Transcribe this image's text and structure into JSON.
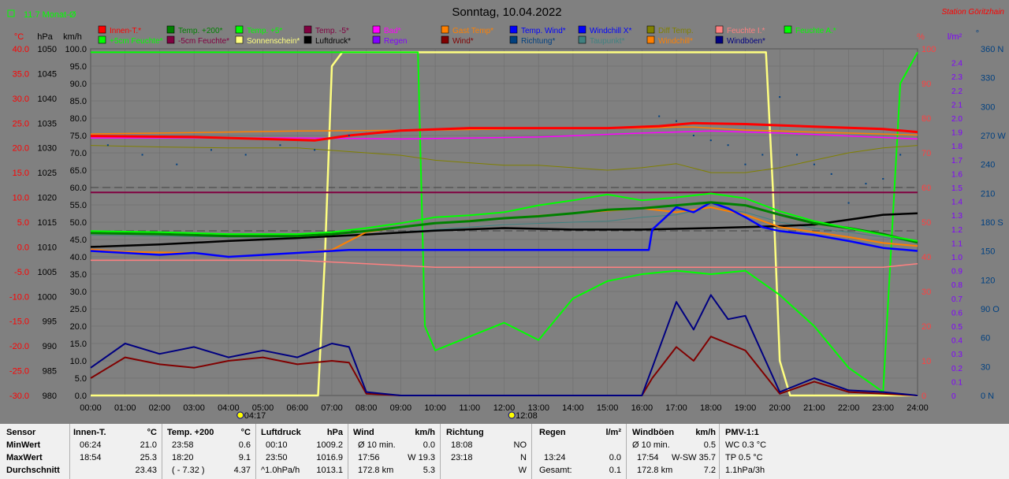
{
  "header": {
    "title": "Sonntag, 10.04.2022",
    "station": "Station Göritzhain",
    "monthly_avg": "11.7 Monat-Ø"
  },
  "legend_row1": [
    {
      "label": "Innen-T.*",
      "color": "#ff0000"
    },
    {
      "label": "Temp. +200*",
      "color": "#008000"
    },
    {
      "label": "Temp. +5*",
      "color": "#00ff00"
    },
    {
      "label": "Temp. -5*",
      "color": "#800040"
    },
    {
      "label": "Bad*",
      "color": "#ff00ff"
    },
    {
      "label": "Gast Temp*",
      "color": "#ff8000"
    },
    {
      "label": "Temp. Wind*",
      "color": "#0000ff"
    },
    {
      "label": "Windchill X*",
      "color": "#0000ff"
    },
    {
      "label": "Diff Temp.",
      "color": "#808000"
    },
    {
      "label": "Feuchte I.*",
      "color": "#ff8080"
    },
    {
      "label": "Feuchte A.*",
      "color": "#00ff00"
    }
  ],
  "legend_row2": [
    {
      "label": "+5cm Feuchte*",
      "color": "#00ff00"
    },
    {
      "label": "-5cm Feuchte*",
      "color": "#800040"
    },
    {
      "label": "Sonnenschein*",
      "color": "#ffff80"
    },
    {
      "label": "Luftdruck*",
      "color": "#000000"
    },
    {
      "label": "Regen",
      "color": "#8000ff"
    },
    {
      "label": "Wind*",
      "color": "#800000"
    },
    {
      "label": "Richtung*",
      "color": "#004080"
    },
    {
      "label": "Taupunkt*",
      "color": "#408080"
    },
    {
      "label": "Windchill*",
      "color": "#ff8000"
    },
    {
      "label": "Windböen*",
      "color": "#000080"
    }
  ],
  "units": {
    "temp": "°C",
    "pressure": "hPa",
    "wind": "km/h",
    "humidity": "%",
    "rain": "l/m²",
    "direction": "°"
  },
  "axes": {
    "temp_ticks": [
      "40.0",
      "35.0",
      "30.0",
      "25.0",
      "20.0",
      "15.0",
      "10.0",
      "5.0",
      "0.0",
      "-5.0",
      "-10.0",
      "-15.0",
      "-20.0",
      "-25.0",
      "-30.0"
    ],
    "pressure_ticks": [
      "1050",
      "1045",
      "1040",
      "1035",
      "1030",
      "1025",
      "1020",
      "1015",
      "1010",
      "1005",
      "1000",
      "995",
      "990",
      "985",
      "980"
    ],
    "wind_ticks": [
      "100.0",
      "95.0",
      "90.0",
      "85.0",
      "80.0",
      "75.0",
      "70.0",
      "65.0",
      "60.0",
      "55.0",
      "50.0",
      "45.0",
      "40.0",
      "35.0",
      "30.0",
      "25.0",
      "20.0",
      "15.0",
      "10.0",
      "5.0",
      "0.0"
    ],
    "humidity_ticks": [
      "100",
      "90",
      "80",
      "70",
      "60",
      "50",
      "40",
      "30",
      "20",
      "10",
      "0"
    ],
    "rain_ticks": [
      "2.4",
      "2.3",
      "2.2",
      "2.1",
      "2.0",
      "1.9",
      "1.8",
      "1.7",
      "1.6",
      "1.5",
      "1.4",
      "1.3",
      "1.2",
      "1.1",
      "1.0",
      "0.9",
      "0.8",
      "0.7",
      "0.6",
      "0.5",
      "0.4",
      "0.3",
      "0.2",
      "0.1",
      "0"
    ],
    "direction_ticks": [
      "360 N",
      "330",
      "300",
      "270 W",
      "240",
      "210",
      "180 S",
      "150",
      "120",
      "90 O",
      "60",
      "30",
      "0 N"
    ],
    "time_ticks": [
      "00:00",
      "01:00",
      "02:00",
      "03:00",
      "04:00",
      "05:00",
      "06:00",
      "07:00",
      "08:00",
      "09:00",
      "10:00",
      "11:00",
      "12:00",
      "13:00",
      "14:00",
      "15:00",
      "16:00",
      "17:00",
      "18:00",
      "19:00",
      "20:00",
      "21:00",
      "22:00",
      "23:00",
      "24:00"
    ],
    "sunrise": "04:17",
    "noon": "12:08"
  },
  "chart_data": {
    "type": "line",
    "x_unit": "hour of day",
    "xlim": [
      0,
      24
    ],
    "ylim_wind": [
      0,
      100
    ],
    "series": [
      {
        "name": "Innen-T.*",
        "axis": "temp",
        "color": "#ff0000",
        "x": [
          0,
          3,
          5,
          6.5,
          7.5,
          9,
          11,
          13,
          15,
          16.5,
          17.5,
          19,
          21,
          23,
          24
        ],
        "y": [
          22.4,
          22.2,
          21.8,
          21.5,
          22.5,
          23.5,
          24.0,
          24.0,
          24.0,
          24.4,
          25.0,
          24.8,
          24.3,
          23.8,
          23.2
        ]
      },
      {
        "name": "Temp. +200*",
        "axis": "temp",
        "color": "#008000",
        "x": [
          0,
          2,
          4,
          6,
          7,
          8,
          9,
          10,
          11,
          12,
          13,
          14,
          15,
          16,
          17,
          18,
          19,
          20,
          21,
          22,
          23,
          24
        ],
        "y": [
          2.8,
          2.6,
          2.2,
          2.2,
          2.6,
          3.2,
          4.0,
          4.8,
          5.2,
          5.8,
          6.2,
          6.8,
          7.5,
          7.8,
          8.4,
          9.0,
          8.4,
          6.5,
          4.8,
          3.8,
          2.6,
          0.9
        ]
      },
      {
        "name": "Temp. +5*",
        "axis": "temp",
        "color": "#00ff00",
        "x": [
          0,
          2,
          4,
          6,
          7,
          8,
          9,
          10,
          11,
          12,
          13,
          14,
          15,
          16,
          17,
          18,
          19,
          20,
          21,
          22,
          23,
          24
        ],
        "y": [
          3.2,
          3.0,
          2.6,
          2.6,
          3.0,
          3.8,
          4.8,
          6.0,
          6.4,
          7.0,
          8.4,
          9.4,
          10.6,
          9.4,
          10.0,
          10.8,
          9.8,
          7.2,
          5.2,
          3.8,
          2.4,
          1.2
        ]
      },
      {
        "name": "Temp. -5*",
        "axis": "temp",
        "color": "#800040",
        "x": [
          0,
          24
        ],
        "y": [
          11.0,
          11.0
        ]
      },
      {
        "name": "Bad*",
        "axis": "temp",
        "color": "#ff00ff",
        "x": [
          0,
          6,
          9,
          13,
          16,
          18,
          20,
          24
        ],
        "y": [
          22.0,
          22.0,
          21.8,
          22.2,
          23.0,
          23.4,
          23.0,
          21.8
        ]
      },
      {
        "name": "Gast Temp*",
        "axis": "temp",
        "color": "#ff8000",
        "x": [
          0,
          2,
          4,
          6,
          8,
          10,
          12,
          14,
          16,
          17,
          17.5,
          18,
          19,
          20,
          22,
          24
        ],
        "y": [
          22.8,
          23.0,
          23.2,
          23.4,
          23.5,
          23.6,
          23.8,
          24.0,
          24.0,
          24.2,
          24.2,
          24.0,
          23.6,
          23.4,
          23.0,
          22.6
        ]
      },
      {
        "name": "Temp. Wind*",
        "axis": "temp",
        "color": "#0000ff",
        "x": [
          0,
          1,
          2,
          3,
          4,
          5,
          6,
          7,
          7.5,
          8,
          16.2,
          16.3,
          17,
          17.5,
          18,
          18.5,
          19,
          19.5,
          20,
          21,
          22,
          23,
          24
        ],
        "y": [
          -0.8,
          -1.2,
          -1.6,
          -1.2,
          -2.0,
          -1.6,
          -1.2,
          -0.8,
          -0.6,
          -0.6,
          -0.6,
          3.5,
          8.0,
          7.0,
          9.0,
          7.8,
          6.0,
          4.0,
          3.2,
          2.4,
          1.2,
          -0.2,
          -0.8
        ]
      },
      {
        "name": "Diff Temp.",
        "axis": "temp",
        "color": "#808000",
        "x": [
          0,
          2,
          4,
          6,
          8,
          9,
          10,
          11,
          12,
          13,
          14,
          15,
          16,
          17,
          18,
          19,
          20,
          21,
          22,
          23,
          24
        ],
        "y": [
          20.5,
          20.2,
          20.0,
          20.0,
          19.0,
          18.5,
          17.5,
          17.0,
          16.5,
          16.5,
          16.0,
          15.5,
          16.0,
          16.8,
          15.0,
          15.0,
          16.0,
          17.5,
          19.0,
          20.0,
          20.5
        ]
      },
      {
        "name": "Feuchte A.*",
        "axis": "humidity",
        "color": "#00ff00",
        "x": [
          0,
          6.5,
          7,
          9.5,
          9.7,
          10,
          11,
          12,
          13,
          14,
          15,
          16,
          17,
          18,
          19,
          20,
          21,
          22,
          23,
          23.5,
          24
        ],
        "y": [
          99,
          99,
          99,
          99,
          20,
          13,
          17,
          21,
          16,
          28,
          33,
          35,
          36,
          35,
          36,
          29,
          20,
          8,
          1,
          90,
          99
        ]
      },
      {
        "name": "Sonnenschein*",
        "axis": "humidity",
        "color": "#ffff80",
        "x": [
          0,
          6.6,
          6.8,
          7,
          7.3,
          19.6,
          19.8,
          20,
          20.3,
          24
        ],
        "y": [
          0,
          0,
          40,
          95,
          99,
          99,
          60,
          10,
          0,
          0
        ]
      },
      {
        "name": "Luftdruck*",
        "axis": "pressure",
        "color": "#000000",
        "x": [
          0,
          2,
          4,
          6,
          8,
          10,
          12,
          14,
          16,
          18,
          20,
          21,
          22,
          23,
          24
        ],
        "y": [
          1010.0,
          1010.5,
          1011.2,
          1011.8,
          1012.5,
          1013.3,
          1013.8,
          1013.5,
          1013.5,
          1013.8,
          1014.2,
          1014.5,
          1015.5,
          1016.5,
          1016.8
        ]
      },
      {
        "name": "Feuchte I.*",
        "axis": "humidity",
        "color": "#ff8080",
        "x": [
          0,
          6,
          8,
          10,
          12,
          14,
          16,
          18,
          20,
          22,
          23,
          24
        ],
        "y": [
          39,
          39,
          38,
          37,
          37,
          37,
          37,
          37,
          37,
          37,
          37,
          38
        ]
      },
      {
        "name": "Wind*",
        "axis": "wind",
        "color": "#800000",
        "x": [
          0,
          1,
          2,
          3,
          4,
          5,
          6,
          7,
          7.5,
          8,
          9,
          12,
          16,
          16.3,
          17,
          17.5,
          18,
          19,
          20,
          21,
          22,
          23,
          24
        ],
        "y": [
          5.0,
          11.0,
          9.0,
          8.0,
          10.0,
          11.0,
          9.0,
          10.0,
          9.5,
          0.5,
          0,
          0,
          0,
          5.0,
          14.0,
          10.0,
          17.0,
          13.0,
          0.5,
          4.0,
          1.0,
          0.5,
          0
        ]
      },
      {
        "name": "Windböen*",
        "axis": "wind",
        "color": "#000080",
        "x": [
          0,
          1,
          2,
          3,
          4,
          5,
          6,
          7,
          7.5,
          8,
          9,
          12,
          16,
          16.3,
          17,
          17.5,
          18,
          18.5,
          19,
          20,
          21,
          22,
          23,
          24
        ],
        "y": [
          8.0,
          15.0,
          12.0,
          14.0,
          11.0,
          13.0,
          11.0,
          15.0,
          14.0,
          1.0,
          0,
          0,
          0,
          8.0,
          27.0,
          19.0,
          29.0,
          22.0,
          23.0,
          1.0,
          5.0,
          1.5,
          1.0,
          0
        ]
      },
      {
        "name": "Taupunkt*",
        "axis": "temp",
        "color": "#408080",
        "x": [
          0,
          2,
          4,
          6,
          8,
          10,
          12,
          14,
          15,
          16,
          17,
          18,
          19,
          20,
          21,
          22,
          23,
          24
        ],
        "y": [
          2.4,
          2.2,
          2.0,
          2.0,
          2.5,
          3.5,
          4.5,
          5.0,
          5.2,
          6.0,
          6.5,
          8.0,
          7.0,
          5.0,
          3.8,
          3.0,
          2.0,
          0.8
        ]
      },
      {
        "name": "Windchill*",
        "axis": "temp",
        "color": "#ff8000",
        "x": [
          0,
          1,
          3,
          4,
          5,
          6,
          7,
          8,
          9,
          10,
          12,
          14,
          16,
          17,
          18,
          19,
          20,
          21,
          22,
          23,
          24
        ],
        "y": [
          -0.5,
          -1.0,
          -1.2,
          -2.0,
          -1.6,
          -1.2,
          -0.6,
          3.0,
          4.0,
          4.8,
          5.8,
          6.8,
          7.8,
          7.0,
          8.0,
          6.5,
          4.0,
          3.0,
          2.0,
          0.8,
          0.2
        ]
      },
      {
        "name": "Richtung*",
        "axis": "direction",
        "color": "#004080",
        "x": [
          0.5,
          1.5,
          2.5,
          3.5,
          4.5,
          5.5,
          6.5,
          7.5,
          16.5,
          17,
          17.5,
          18,
          18.5,
          19,
          19.5,
          20,
          20.5,
          21,
          21.5,
          22,
          22.5,
          23,
          23.5
        ],
        "y": [
          260,
          250,
          240,
          255,
          250,
          260,
          255,
          270,
          290,
          285,
          270,
          265,
          260,
          240,
          250,
          310,
          250,
          240,
          230,
          200,
          220,
          225,
          250
        ]
      }
    ]
  },
  "stats": {
    "sensor": {
      "title": "Sensor",
      "rows": [
        "MinWert",
        "MaxWert",
        "Durchschnitt"
      ]
    },
    "innen": {
      "title": "Innen-T.",
      "unit": "°C",
      "rows": [
        [
          "06:24",
          "21.0"
        ],
        [
          "18:54",
          "25.3"
        ],
        [
          "",
          "23.43"
        ]
      ]
    },
    "temp200": {
      "title": "Temp. +200",
      "unit": "°C",
      "rows": [
        [
          "23:58",
          "0.6"
        ],
        [
          "18:20",
          "9.1"
        ],
        [
          "( - 7.32 )",
          "4.37"
        ]
      ]
    },
    "luftdruck": {
      "title": "Luftdruck",
      "unit": "hPa",
      "rows": [
        [
          "00:10",
          "1009.2"
        ],
        [
          "23:50",
          "1016.9"
        ],
        [
          "^1.0hPa/h",
          "1013.1"
        ]
      ]
    },
    "wind": {
      "title": "Wind",
      "unit": "km/h",
      "rows": [
        [
          "Ø 10 min.",
          "0.0"
        ],
        [
          "17:56",
          "W 19.3"
        ],
        [
          "172.8 km",
          "5.3"
        ]
      ]
    },
    "richtung": {
      "title": "Richtung",
      "unit": "",
      "rows": [
        [
          "18:08",
          "NO"
        ],
        [
          "23:18",
          "N"
        ],
        [
          "",
          "W"
        ]
      ]
    },
    "regen": {
      "title": "Regen",
      "unit": "l/m²",
      "rows": [
        [
          "",
          ""
        ],
        [
          "13:24",
          "0.0"
        ],
        [
          "Gesamt:",
          "0.1"
        ]
      ]
    },
    "windboeen": {
      "title": "Windböen",
      "unit": "km/h",
      "rows": [
        [
          "Ø 10 min.",
          "0.5"
        ],
        [
          "17:54",
          "W-SW 35.7"
        ],
        [
          "172.8 km",
          "7.2"
        ]
      ]
    },
    "pmv": {
      "title": "PMV-1:1",
      "rows": [
        "WC 0.3 °C",
        "TP 0.5 °C",
        "1.1hPa/3h"
      ]
    }
  }
}
